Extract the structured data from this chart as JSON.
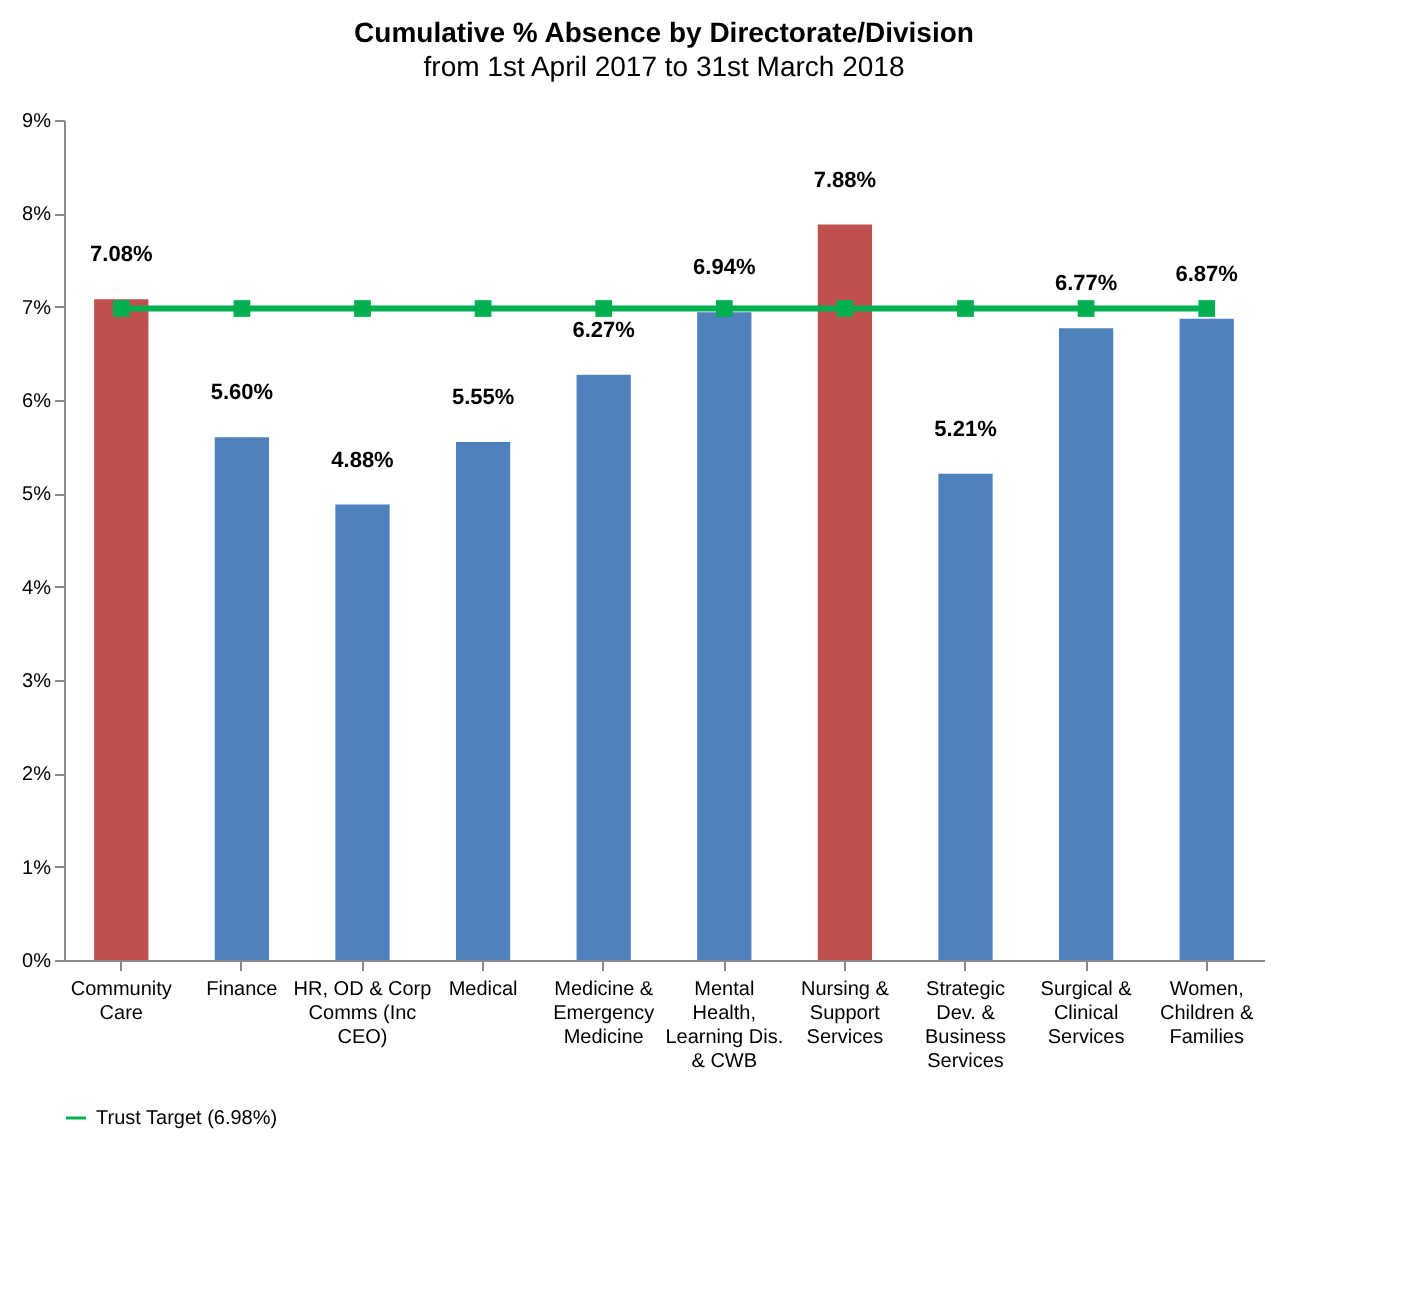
{
  "chart_data": {
    "type": "bar",
    "title": "Cumulative % Absence by Directorate/Division",
    "subtitle": "from 1st April 2017 to 31st March 2018",
    "categories": [
      "Community Care",
      "Finance",
      "HR, OD & Corp Comms (Inc CEO)",
      "Medical",
      "Medicine & Emergency Medicine",
      "Mental Health, Learning Dis. & CWB",
      "Nursing & Support Services",
      "Strategic Dev. & Business Services",
      "Surgical & Clinical Services",
      "Women, Children & Families"
    ],
    "series": [
      {
        "colors": [
          "#c0504d",
          "#4f81bd",
          "#4f81bd",
          "#4f81bd",
          "#4f81bd",
          "#4f81bd",
          "#c0504d",
          "#4f81bd",
          "#4f81bd",
          "#4f81bd"
        ],
        "values": [
          7.08,
          5.6,
          4.88,
          5.55,
          6.27,
          6.94,
          7.88,
          5.21,
          6.77,
          6.87
        ],
        "value_labels": [
          "7.08%",
          "5.60%",
          "4.88%",
          "5.55%",
          "6.27%",
          "6.94%",
          "7.88%",
          "5.21%",
          "6.77%",
          "6.87%"
        ]
      },
      {
        "type": "line",
        "name": "Trust Target (6.98%)",
        "color": "#00b050",
        "marker": "square",
        "values": [
          6.98,
          6.98,
          6.98,
          6.98,
          6.98,
          6.98,
          6.98,
          6.98,
          6.98,
          6.98
        ]
      }
    ],
    "ylim": [
      0,
      9
    ],
    "yticks": [
      {
        "value": 0,
        "label": "0%"
      },
      {
        "value": 1,
        "label": "1%"
      },
      {
        "value": 2,
        "label": "2%"
      },
      {
        "value": 3,
        "label": "3%"
      },
      {
        "value": 4,
        "label": "4%"
      },
      {
        "value": 5,
        "label": "5%"
      },
      {
        "value": 6,
        "label": "6%"
      },
      {
        "value": 7,
        "label": "7%"
      },
      {
        "value": 8,
        "label": "8%"
      },
      {
        "value": 9,
        "label": "9%"
      }
    ],
    "legend": "bottom"
  }
}
